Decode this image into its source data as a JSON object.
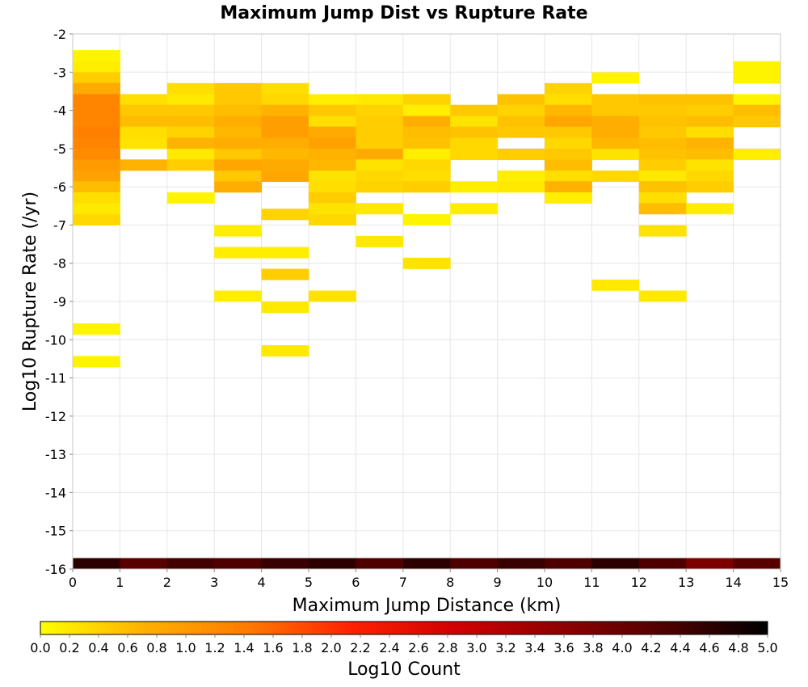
{
  "chart_data": {
    "type": "heatmap",
    "title": "Maximum Jump Dist vs Rupture Rate",
    "xlabel": "Maximum Jump Distance (km)",
    "ylabel": "Log10 Rupture Rate (/yr)",
    "xlim": [
      0,
      15
    ],
    "ylim": [
      -16,
      -2
    ],
    "x_ticks": [
      "0",
      "1",
      "2",
      "3",
      "4",
      "5",
      "6",
      "7",
      "8",
      "9",
      "10",
      "11",
      "12",
      "13",
      "14",
      "15"
    ],
    "y_ticks": [
      "-2",
      "-3",
      "-4",
      "-5",
      "-6",
      "-7",
      "-8",
      "-9",
      "-10",
      "-11",
      "-12",
      "-13",
      "-14",
      "-15",
      "-16"
    ],
    "x_bin_width": 1,
    "y_bin_height": 0.2857,
    "grid": true,
    "colorscale": {
      "label": "Log10 Count",
      "min": 0.0,
      "max": 5.0,
      "ticks": [
        "0.0",
        "0.2",
        "0.4",
        "0.6",
        "0.8",
        "1.0",
        "1.2",
        "1.4",
        "1.6",
        "1.8",
        "2.0",
        "2.2",
        "2.4",
        "2.6",
        "2.8",
        "3.0",
        "3.2",
        "3.4",
        "3.6",
        "3.8",
        "4.0",
        "4.2",
        "4.4",
        "4.6",
        "4.8",
        "5.0"
      ],
      "stops": [
        "#ffff00",
        "#ffb000",
        "#ff7a00",
        "#ff2000",
        "#d00000",
        "#900000",
        "#500000",
        "#000000"
      ]
    },
    "cells": [
      {
        "x": 0,
        "y": -2.71,
        "v": 0.1
      },
      {
        "x": 0,
        "y": -3.0,
        "v": 0.15
      },
      {
        "x": 0,
        "y": -3.29,
        "v": 0.45
      },
      {
        "x": 0,
        "y": -3.57,
        "v": 0.8
      },
      {
        "x": 0,
        "y": -3.86,
        "v": 1.3
      },
      {
        "x": 0,
        "y": -4.14,
        "v": 1.3
      },
      {
        "x": 0,
        "y": -4.43,
        "v": 1.3
      },
      {
        "x": 0,
        "y": -4.71,
        "v": 1.35
      },
      {
        "x": 0,
        "y": -5.0,
        "v": 1.3
      },
      {
        "x": 0,
        "y": -5.29,
        "v": 1.2
      },
      {
        "x": 0,
        "y": -5.57,
        "v": 1.0
      },
      {
        "x": 0,
        "y": -5.86,
        "v": 0.9
      },
      {
        "x": 0,
        "y": -6.14,
        "v": 0.6
      },
      {
        "x": 0,
        "y": -6.43,
        "v": 0.3
      },
      {
        "x": 0,
        "y": -6.71,
        "v": 0.2
      },
      {
        "x": 0,
        "y": -7.0,
        "v": 0.35
      },
      {
        "x": 0,
        "y": -9.86,
        "v": 0.1
      },
      {
        "x": 0,
        "y": -10.71,
        "v": 0.1
      },
      {
        "x": 0,
        "y": -16.0,
        "v": 4.6
      },
      {
        "x": 1,
        "y": -3.86,
        "v": 0.3
      },
      {
        "x": 1,
        "y": -4.14,
        "v": 0.5
      },
      {
        "x": 1,
        "y": -4.43,
        "v": 0.6
      },
      {
        "x": 1,
        "y": -4.71,
        "v": 0.3
      },
      {
        "x": 1,
        "y": -5.0,
        "v": 0.25
      },
      {
        "x": 1,
        "y": -5.57,
        "v": 0.7
      },
      {
        "x": 1,
        "y": -16.0,
        "v": 4.2
      },
      {
        "x": 2,
        "y": -3.57,
        "v": 0.3
      },
      {
        "x": 2,
        "y": -3.86,
        "v": 0.2
      },
      {
        "x": 2,
        "y": -4.14,
        "v": 0.5
      },
      {
        "x": 2,
        "y": -4.43,
        "v": 0.6
      },
      {
        "x": 2,
        "y": -4.71,
        "v": 0.4
      },
      {
        "x": 2,
        "y": -5.0,
        "v": 0.7
      },
      {
        "x": 2,
        "y": -5.29,
        "v": 0.2
      },
      {
        "x": 2,
        "y": -5.57,
        "v": 0.45
      },
      {
        "x": 2,
        "y": -6.43,
        "v": 0.1
      },
      {
        "x": 2,
        "y": -16.0,
        "v": 4.4
      },
      {
        "x": 3,
        "y": -3.57,
        "v": 0.5
      },
      {
        "x": 3,
        "y": -3.86,
        "v": 0.5
      },
      {
        "x": 3,
        "y": -4.14,
        "v": 0.6
      },
      {
        "x": 3,
        "y": -4.43,
        "v": 0.75
      },
      {
        "x": 3,
        "y": -4.71,
        "v": 0.65
      },
      {
        "x": 3,
        "y": -5.0,
        "v": 0.75
      },
      {
        "x": 3,
        "y": -5.29,
        "v": 0.5
      },
      {
        "x": 3,
        "y": -5.57,
        "v": 0.85
      },
      {
        "x": 3,
        "y": -5.86,
        "v": 0.5
      },
      {
        "x": 3,
        "y": -6.14,
        "v": 0.75
      },
      {
        "x": 3,
        "y": -7.29,
        "v": 0.15
      },
      {
        "x": 3,
        "y": -7.86,
        "v": 0.15
      },
      {
        "x": 3,
        "y": -9.0,
        "v": 0.15
      },
      {
        "x": 3,
        "y": -16.0,
        "v": 4.3
      },
      {
        "x": 4,
        "y": -3.57,
        "v": 0.3
      },
      {
        "x": 4,
        "y": -3.86,
        "v": 0.35
      },
      {
        "x": 4,
        "y": -4.14,
        "v": 0.7
      },
      {
        "x": 4,
        "y": -4.43,
        "v": 0.95
      },
      {
        "x": 4,
        "y": -4.71,
        "v": 0.95
      },
      {
        "x": 4,
        "y": -5.0,
        "v": 0.75
      },
      {
        "x": 4,
        "y": -5.29,
        "v": 0.65
      },
      {
        "x": 4,
        "y": -5.57,
        "v": 0.8
      },
      {
        "x": 4,
        "y": -5.86,
        "v": 0.85
      },
      {
        "x": 4,
        "y": -6.86,
        "v": 0.4
      },
      {
        "x": 4,
        "y": -7.86,
        "v": 0.15
      },
      {
        "x": 4,
        "y": -8.43,
        "v": 0.45
      },
      {
        "x": 4,
        "y": -9.29,
        "v": 0.2
      },
      {
        "x": 4,
        "y": -10.43,
        "v": 0.2
      },
      {
        "x": 4,
        "y": -16.0,
        "v": 4.5
      },
      {
        "x": 5,
        "y": -3.86,
        "v": 0.15
      },
      {
        "x": 5,
        "y": -4.14,
        "v": 0.5
      },
      {
        "x": 5,
        "y": -4.43,
        "v": 0.3
      },
      {
        "x": 5,
        "y": -4.71,
        "v": 0.8
      },
      {
        "x": 5,
        "y": -5.0,
        "v": 0.9
      },
      {
        "x": 5,
        "y": -5.29,
        "v": 0.7
      },
      {
        "x": 5,
        "y": -5.57,
        "v": 0.65
      },
      {
        "x": 5,
        "y": -5.86,
        "v": 0.25
      },
      {
        "x": 5,
        "y": -6.14,
        "v": 0.3
      },
      {
        "x": 5,
        "y": -6.43,
        "v": 0.45
      },
      {
        "x": 5,
        "y": -6.71,
        "v": 0.25
      },
      {
        "x": 5,
        "y": -7.0,
        "v": 0.35
      },
      {
        "x": 5,
        "y": -9.0,
        "v": 0.25
      },
      {
        "x": 5,
        "y": -16.0,
        "v": 4.6
      },
      {
        "x": 6,
        "y": -3.86,
        "v": 0.2
      },
      {
        "x": 6,
        "y": -4.14,
        "v": 0.4
      },
      {
        "x": 6,
        "y": -4.43,
        "v": 0.45
      },
      {
        "x": 6,
        "y": -4.71,
        "v": 0.45
      },
      {
        "x": 6,
        "y": -5.0,
        "v": 0.45
      },
      {
        "x": 6,
        "y": -5.29,
        "v": 0.8
      },
      {
        "x": 6,
        "y": -5.57,
        "v": 0.25
      },
      {
        "x": 6,
        "y": -5.86,
        "v": 0.35
      },
      {
        "x": 6,
        "y": -6.14,
        "v": 0.4
      },
      {
        "x": 6,
        "y": -6.71,
        "v": 0.2
      },
      {
        "x": 6,
        "y": -7.57,
        "v": 0.2
      },
      {
        "x": 6,
        "y": -16.0,
        "v": 4.3
      },
      {
        "x": 7,
        "y": -3.86,
        "v": 0.4
      },
      {
        "x": 7,
        "y": -4.14,
        "v": 0.15
      },
      {
        "x": 7,
        "y": -4.43,
        "v": 0.75
      },
      {
        "x": 7,
        "y": -4.71,
        "v": 0.6
      },
      {
        "x": 7,
        "y": -5.0,
        "v": 0.55
      },
      {
        "x": 7,
        "y": -5.29,
        "v": 0.15
      },
      {
        "x": 7,
        "y": -5.57,
        "v": 0.35
      },
      {
        "x": 7,
        "y": -5.86,
        "v": 0.3
      },
      {
        "x": 7,
        "y": -6.14,
        "v": 0.45
      },
      {
        "x": 7,
        "y": -7.0,
        "v": 0.1
      },
      {
        "x": 7,
        "y": -8.14,
        "v": 0.25
      },
      {
        "x": 7,
        "y": -16.0,
        "v": 4.6
      },
      {
        "x": 8,
        "y": -4.14,
        "v": 0.5
      },
      {
        "x": 8,
        "y": -4.43,
        "v": 0.25
      },
      {
        "x": 8,
        "y": -4.71,
        "v": 0.55
      },
      {
        "x": 8,
        "y": -5.0,
        "v": 0.35
      },
      {
        "x": 8,
        "y": -5.29,
        "v": 0.35
      },
      {
        "x": 8,
        "y": -6.14,
        "v": 0.15
      },
      {
        "x": 8,
        "y": -6.71,
        "v": 0.15
      },
      {
        "x": 8,
        "y": -16.0,
        "v": 4.3
      },
      {
        "x": 9,
        "y": -3.86,
        "v": 0.55
      },
      {
        "x": 9,
        "y": -4.14,
        "v": 0.4
      },
      {
        "x": 9,
        "y": -4.43,
        "v": 0.55
      },
      {
        "x": 9,
        "y": -4.71,
        "v": 0.5
      },
      {
        "x": 9,
        "y": -5.29,
        "v": 0.45
      },
      {
        "x": 9,
        "y": -5.86,
        "v": 0.15
      },
      {
        "x": 9,
        "y": -6.14,
        "v": 0.2
      },
      {
        "x": 9,
        "y": -16.0,
        "v": 4.5
      },
      {
        "x": 10,
        "y": -3.57,
        "v": 0.4
      },
      {
        "x": 10,
        "y": -3.86,
        "v": 0.3
      },
      {
        "x": 10,
        "y": -4.14,
        "v": 0.65
      },
      {
        "x": 10,
        "y": -4.43,
        "v": 0.85
      },
      {
        "x": 10,
        "y": -4.71,
        "v": 0.5
      },
      {
        "x": 10,
        "y": -5.0,
        "v": 0.35
      },
      {
        "x": 10,
        "y": -5.29,
        "v": 0.5
      },
      {
        "x": 10,
        "y": -5.57,
        "v": 0.6
      },
      {
        "x": 10,
        "y": -5.86,
        "v": 0.3
      },
      {
        "x": 10,
        "y": -6.14,
        "v": 0.7
      },
      {
        "x": 10,
        "y": -6.43,
        "v": 0.15
      },
      {
        "x": 10,
        "y": -16.0,
        "v": 4.3
      },
      {
        "x": 11,
        "y": -3.29,
        "v": 0.1
      },
      {
        "x": 11,
        "y": -3.86,
        "v": 0.5
      },
      {
        "x": 11,
        "y": -4.14,
        "v": 0.5
      },
      {
        "x": 11,
        "y": -4.43,
        "v": 0.75
      },
      {
        "x": 11,
        "y": -4.71,
        "v": 0.75
      },
      {
        "x": 11,
        "y": -5.0,
        "v": 0.65
      },
      {
        "x": 11,
        "y": -5.29,
        "v": 0.25
      },
      {
        "x": 11,
        "y": -5.86,
        "v": 0.35
      },
      {
        "x": 11,
        "y": -8.71,
        "v": 0.2
      },
      {
        "x": 11,
        "y": -16.0,
        "v": 4.6
      },
      {
        "x": 12,
        "y": -3.86,
        "v": 0.55
      },
      {
        "x": 12,
        "y": -4.14,
        "v": 0.5
      },
      {
        "x": 12,
        "y": -4.43,
        "v": 0.55
      },
      {
        "x": 12,
        "y": -4.71,
        "v": 0.5
      },
      {
        "x": 12,
        "y": -5.0,
        "v": 0.6
      },
      {
        "x": 12,
        "y": -5.29,
        "v": 0.55
      },
      {
        "x": 12,
        "y": -5.57,
        "v": 0.45
      },
      {
        "x": 12,
        "y": -5.86,
        "v": 0.2
      },
      {
        "x": 12,
        "y": -6.14,
        "v": 0.55
      },
      {
        "x": 12,
        "y": -6.43,
        "v": 0.3
      },
      {
        "x": 12,
        "y": -6.71,
        "v": 0.6
      },
      {
        "x": 12,
        "y": -7.29,
        "v": 0.25
      },
      {
        "x": 12,
        "y": -9.0,
        "v": 0.2
      },
      {
        "x": 12,
        "y": -16.0,
        "v": 4.3
      },
      {
        "x": 13,
        "y": -3.86,
        "v": 0.55
      },
      {
        "x": 13,
        "y": -4.14,
        "v": 0.45
      },
      {
        "x": 13,
        "y": -4.43,
        "v": 0.6
      },
      {
        "x": 13,
        "y": -4.71,
        "v": 0.3
      },
      {
        "x": 13,
        "y": -5.0,
        "v": 0.7
      },
      {
        "x": 13,
        "y": -5.29,
        "v": 0.6
      },
      {
        "x": 13,
        "y": -5.57,
        "v": 0.25
      },
      {
        "x": 13,
        "y": -5.86,
        "v": 0.35
      },
      {
        "x": 13,
        "y": -6.14,
        "v": 0.45
      },
      {
        "x": 13,
        "y": -6.71,
        "v": 0.15
      },
      {
        "x": 13,
        "y": -16.0,
        "v": 3.8
      },
      {
        "x": 14,
        "y": -3.0,
        "v": 0.1
      },
      {
        "x": 14,
        "y": -3.29,
        "v": 0.1
      },
      {
        "x": 14,
        "y": -3.86,
        "v": 0.1
      },
      {
        "x": 14,
        "y": -4.14,
        "v": 0.6
      },
      {
        "x": 14,
        "y": -4.43,
        "v": 0.5
      },
      {
        "x": 14,
        "y": -5.29,
        "v": 0.15
      },
      {
        "x": 14,
        "y": -16.0,
        "v": 4.2
      }
    ]
  }
}
